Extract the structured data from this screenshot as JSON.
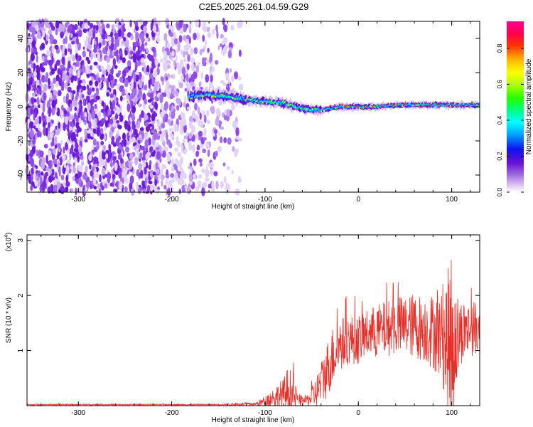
{
  "title": "C2E5.2025.261.04.59.G29",
  "chart_data": [
    {
      "type": "heatmap",
      "name": "spectrogram",
      "xlabel": "Height of straight line (km)",
      "ylabel": "Frequency (Hz)",
      "xlim": [
        -355,
        130
      ],
      "ylim": [
        -50,
        50
      ],
      "xticks": [
        -300,
        -200,
        -100,
        0,
        100
      ],
      "yticks": [
        -40,
        -20,
        0,
        20,
        40
      ],
      "noise_region_x": [
        -355,
        -125
      ],
      "signal_track": {
        "x": [
          -180,
          -160,
          -140,
          -120,
          -100,
          -80,
          -60,
          -40,
          -20,
          0,
          20,
          40,
          60,
          80,
          100,
          120,
          130
        ],
        "y": [
          6,
          7,
          6,
          4,
          3,
          2,
          -1,
          -2,
          0,
          0,
          0,
          1,
          1,
          1,
          1,
          1,
          1
        ]
      },
      "colorbar": {
        "label": "Normalized spectral amplitude",
        "range": [
          0,
          0.95
        ],
        "ticks": [
          0,
          0.2,
          0.4,
          0.6,
          0.8
        ],
        "tick_labels": [
          "0.0",
          "0.2",
          "0.4",
          "0.6",
          "0.8"
        ]
      }
    },
    {
      "type": "line",
      "name": "snr",
      "xlabel": "Height of straight line (km)",
      "ylabel": "SNR (10 * v/v)",
      "scale_label": "(x10",
      "scale_exp": "4",
      "scale_close": ")",
      "xlim": [
        -355,
        130
      ],
      "ylim": [
        0,
        3.1
      ],
      "xticks": [
        -300,
        -200,
        -100,
        0,
        100
      ],
      "yticks": [
        1,
        2,
        3
      ],
      "color": "#e8302a",
      "envelope": {
        "x": [
          -355,
          -150,
          -110,
          -100,
          -90,
          -80,
          -75,
          -70,
          -65,
          -60,
          -55,
          -50,
          -45,
          -40,
          -35,
          -30,
          -25,
          -20,
          -10,
          0,
          10,
          20,
          30,
          40,
          50,
          60,
          70,
          80,
          90,
          95,
          100,
          105,
          110,
          120,
          130
        ],
        "base": [
          0.02,
          0.02,
          0.03,
          0.08,
          0.15,
          0.2,
          0.25,
          0.2,
          0.1,
          0.08,
          0.1,
          0.15,
          0.25,
          0.4,
          0.6,
          0.8,
          1.0,
          1.1,
          1.2,
          1.2,
          1.3,
          1.35,
          1.4,
          1.45,
          1.45,
          1.45,
          1.4,
          1.35,
          1.25,
          1.1,
          1.0,
          1.2,
          1.35,
          1.4,
          1.4
        ],
        "amp": [
          0.01,
          0.01,
          0.03,
          0.1,
          0.2,
          0.3,
          0.5,
          0.35,
          0.15,
          0.08,
          0.1,
          0.2,
          0.3,
          0.4,
          0.5,
          0.55,
          0.55,
          0.5,
          0.45,
          0.45,
          0.45,
          0.5,
          0.5,
          0.55,
          0.55,
          0.6,
          0.6,
          0.7,
          0.8,
          1.3,
          1.9,
          0.9,
          0.6,
          0.5,
          0.5
        ]
      }
    }
  ]
}
